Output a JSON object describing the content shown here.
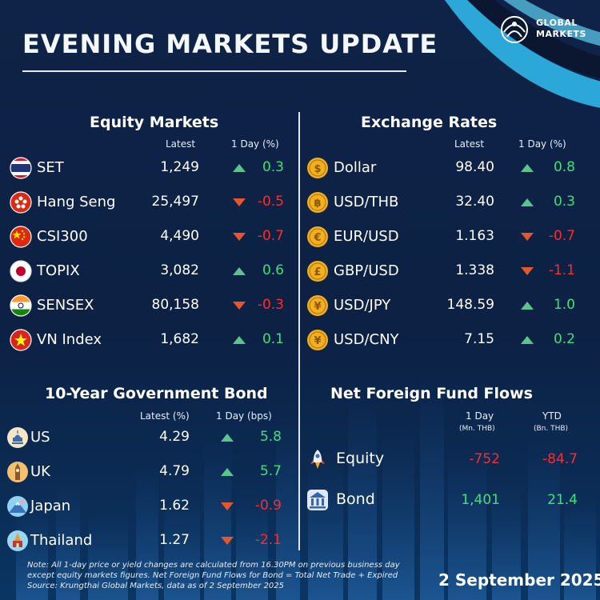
{
  "header": {
    "title": "EVENING MARKETS UPDATE",
    "logo_line1": "GLOBAL",
    "logo_line2": "MARKETS"
  },
  "equity": {
    "title": "Equity Markets",
    "col_latest": "Latest",
    "col_change": "1 Day (%)",
    "rows": [
      {
        "name": "SET",
        "latest": "1,249",
        "change": "0.3",
        "direction": "up",
        "icon": "thailand-flag-icon"
      },
      {
        "name": "Hang Seng",
        "latest": "25,497",
        "change": "-0.5",
        "direction": "down",
        "icon": "hong-kong-flag-icon"
      },
      {
        "name": "CSI300",
        "latest": "4,490",
        "change": "-0.7",
        "direction": "down",
        "icon": "china-flag-icon"
      },
      {
        "name": "TOPIX",
        "latest": "3,082",
        "change": "0.6",
        "direction": "up",
        "icon": "japan-flag-icon"
      },
      {
        "name": "SENSEX",
        "latest": "80,158",
        "change": "-0.3",
        "direction": "down",
        "icon": "india-flag-icon"
      },
      {
        "name": "VN Index",
        "latest": "1,682",
        "change": "0.1",
        "direction": "up",
        "icon": "vietnam-flag-icon"
      }
    ]
  },
  "fx": {
    "title": "Exchange Rates",
    "col_latest": "Latest",
    "col_change": "1 Day (%)",
    "rows": [
      {
        "name": "Dollar",
        "latest": "98.40",
        "change": "0.8",
        "direction": "up",
        "symbol": "$"
      },
      {
        "name": "USD/THB",
        "latest": "32.40",
        "change": "0.3",
        "direction": "up",
        "symbol": "฿"
      },
      {
        "name": "EUR/USD",
        "latest": "1.163",
        "change": "-0.7",
        "direction": "down",
        "symbol": "€"
      },
      {
        "name": "GBP/USD",
        "latest": "1.338",
        "change": "-1.1",
        "direction": "down",
        "symbol": "£"
      },
      {
        "name": "USD/JPY",
        "latest": "148.59",
        "change": "1.0",
        "direction": "up",
        "symbol": "¥"
      },
      {
        "name": "USD/CNY",
        "latest": "7.15",
        "change": "0.2",
        "direction": "up",
        "symbol": "¥"
      }
    ]
  },
  "bond": {
    "title": "10-Year Government Bond",
    "col_latest": "Latest (%)",
    "col_change": "1 Day (bps)",
    "rows": [
      {
        "name": "US",
        "latest": "4.29",
        "change": "5.8",
        "direction": "up",
        "icon": "us-capitol-icon"
      },
      {
        "name": "UK",
        "latest": "4.79",
        "change": "5.7",
        "direction": "up",
        "icon": "big-ben-icon"
      },
      {
        "name": "Japan",
        "latest": "1.62",
        "change": "-0.9",
        "direction": "down",
        "icon": "mount-fuji-icon"
      },
      {
        "name": "Thailand",
        "latest": "1.27",
        "change": "-2.1",
        "direction": "down",
        "icon": "thai-temple-icon"
      }
    ]
  },
  "flows": {
    "title": "Net Foreign Fund Flows",
    "col_1day": "1 Day",
    "col_1day_unit": "(Mn. THB)",
    "col_ytd": "YTD",
    "col_ytd_unit": "(Bn. THB)",
    "rows": [
      {
        "name": "Equity",
        "day": "-752",
        "ytd": "-84.7",
        "day_dir": "neg",
        "ytd_dir": "neg",
        "icon": "rocket-icon"
      },
      {
        "name": "Bond",
        "day": "1,401",
        "ytd": "21.4",
        "day_dir": "pos",
        "ytd_dir": "pos",
        "icon": "bank-icon"
      }
    ]
  },
  "footer": {
    "note_label": "Note:",
    "note_text": "All 1-day price or yield changes are calculated from 16.30PM on previous business day except equity markets figures. Net Foreign Fund Flows for Bond = Total Net Trade + Expired",
    "source_label": "Source:",
    "source_text": "Krungthai Global Markets, data as of 2 September 2025",
    "date": "2 September 2025"
  },
  "colors": {
    "positive": "#3ee07a",
    "negative": "#ff2b2b",
    "arrow_up": "#5bc48e",
    "arrow_down": "#e4572e",
    "coin": "#f2b01e"
  }
}
